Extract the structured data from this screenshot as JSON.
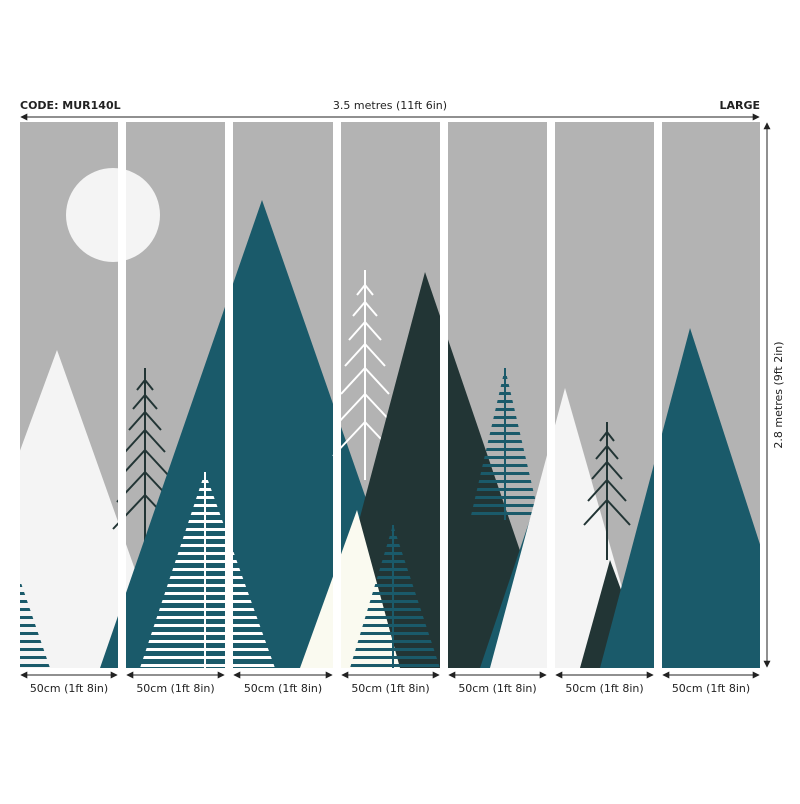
{
  "header": {
    "code": "CODE: MUR140L",
    "width": "3.5 metres (11ft 6in)",
    "size": "LARGE"
  },
  "height": "2.8 metres (9ft 2in)",
  "panels": [
    "50cm (1ft 8in)",
    "50cm (1ft 8in)",
    "50cm (1ft 8in)",
    "50cm (1ft 8in)",
    "50cm (1ft 8in)",
    "50cm (1ft 8in)",
    "50cm (1ft 8in)"
  ]
}
